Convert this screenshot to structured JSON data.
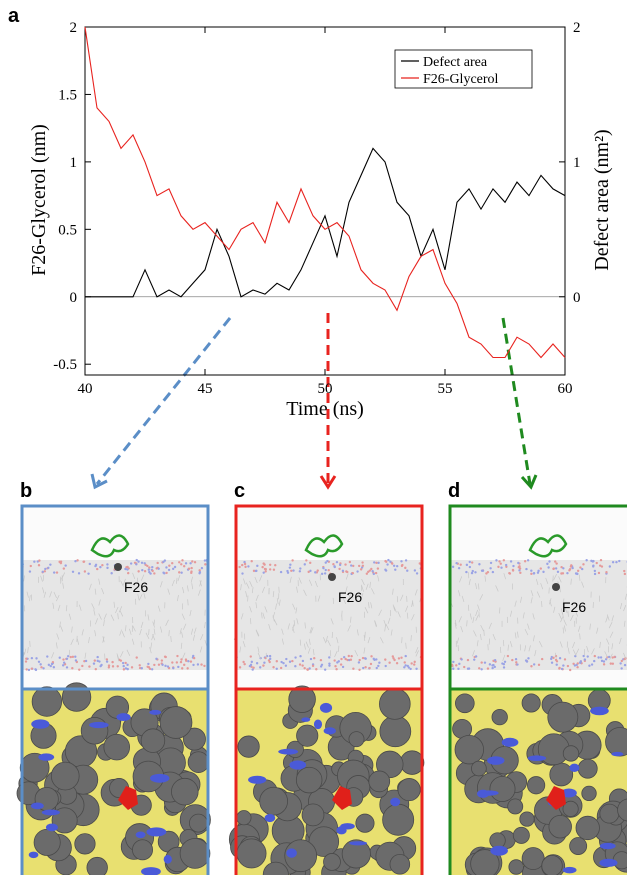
{
  "chart_data": {
    "type": "line",
    "panel_label": "a",
    "xlabel": "Time (ns)",
    "ylabel": "F26-Glycerol (nm)",
    "y2label": "Defect area (nm²)",
    "x": [
      40,
      40.5,
      41,
      41.5,
      42,
      42.5,
      43,
      43.5,
      44,
      44.5,
      45,
      45.5,
      46,
      46.5,
      47,
      47.5,
      48,
      48.5,
      49,
      49.5,
      50,
      50.5,
      51,
      51.5,
      52,
      52.5,
      53,
      53.5,
      54,
      54.5,
      55,
      55.5,
      56,
      56.5,
      57,
      57.5,
      58,
      58.5,
      59,
      59.5,
      60
    ],
    "xlim": [
      40,
      60
    ],
    "xticks": [
      40,
      45,
      50,
      55,
      60
    ],
    "ylim": [
      -0.58,
      2
    ],
    "yticks": [
      -0.5,
      0,
      0.5,
      1,
      1.5,
      2
    ],
    "y2lim": [
      -0.58,
      2
    ],
    "y2ticks": [
      0,
      1,
      2
    ],
    "legend": "upper right",
    "series": [
      {
        "name": "Defect area",
        "color": "#000000",
        "axis": "y2",
        "values": [
          0,
          0,
          0,
          0,
          0,
          0.2,
          0,
          0.05,
          0,
          0.1,
          0.2,
          0.5,
          0.3,
          0,
          0.05,
          0.02,
          0.1,
          0.05,
          0.2,
          0.4,
          0.6,
          0.3,
          0.7,
          0.9,
          1.1,
          1.0,
          0.7,
          0.6,
          0.3,
          0.5,
          0.2,
          0.7,
          0.8,
          0.65,
          0.8,
          0.7,
          0.85,
          0.75,
          0.9,
          0.8,
          0.75
        ]
      },
      {
        "name": "F26-Glycerol",
        "color": "#e8231f",
        "values": [
          2.0,
          1.4,
          1.3,
          1.1,
          1.2,
          1.0,
          0.75,
          0.8,
          0.6,
          0.5,
          0.55,
          0.45,
          0.35,
          0.5,
          0.55,
          0.4,
          0.7,
          0.55,
          0.8,
          0.6,
          0.5,
          0.55,
          0.45,
          0.2,
          0.1,
          0.05,
          -0.1,
          0.15,
          0.3,
          0.35,
          0.1,
          -0.05,
          -0.3,
          -0.35,
          -0.45,
          -0.45,
          -0.3,
          -0.35,
          -0.45,
          -0.35,
          -0.45
        ]
      }
    ]
  },
  "panels": [
    {
      "label": "b",
      "residue": "F26",
      "color": "#5b8ec7"
    },
    {
      "label": "c",
      "residue": "F26",
      "color": "#e8231f"
    },
    {
      "label": "d",
      "residue": "F26",
      "color": "#1f8a1f"
    }
  ]
}
